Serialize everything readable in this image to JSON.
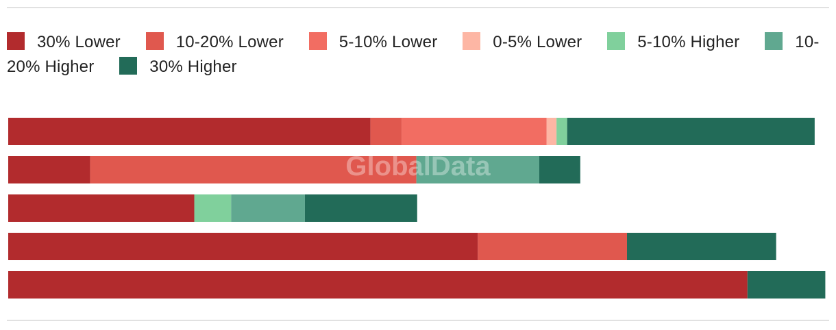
{
  "watermark": "GlobalData",
  "chart_data": {
    "type": "bar",
    "orientation": "horizontal",
    "stacked": true,
    "categories": [
      "",
      "",
      "",
      "",
      ""
    ],
    "series": [
      {
        "name": "30% Lower",
        "color": "#b22b2d",
        "values": [
          44.2,
          10.0,
          22.7,
          57.3,
          90.2
        ]
      },
      {
        "name": "10-20% Lower",
        "color": "#e0584e",
        "values": [
          3.8,
          39.8,
          0,
          18.2,
          0
        ]
      },
      {
        "name": "5-10% Lower",
        "color": "#f26d62",
        "values": [
          17.7,
          0,
          0,
          0,
          0
        ]
      },
      {
        "name": "0-5% Lower",
        "color": "#fdb6a4",
        "values": [
          1.2,
          0,
          0,
          0,
          0
        ]
      },
      {
        "name": "5-10% Higher",
        "color": "#80d09c",
        "values": [
          1.3,
          0,
          4.5,
          0,
          0
        ]
      },
      {
        "name": "10-20% Higher",
        "color": "#60a890",
        "values": [
          0,
          15.0,
          9.0,
          0,
          0
        ]
      },
      {
        "name": "30% Higher",
        "color": "#226b58",
        "values": [
          30.2,
          5.0,
          13.7,
          18.2,
          9.5
        ]
      }
    ],
    "xlim": [
      0,
      100
    ],
    "grid": false,
    "legend": "top"
  }
}
